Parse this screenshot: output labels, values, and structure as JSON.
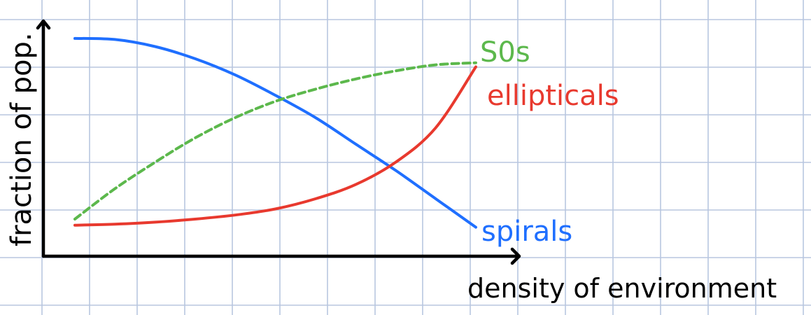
{
  "chart_data": {
    "type": "line",
    "title": "",
    "xlabel": "density of environment",
    "ylabel": "fraction of pop.",
    "xlim": [
      0,
      1
    ],
    "ylim": [
      0,
      1
    ],
    "grid": true,
    "legend": "labels at line ends (right)",
    "x": [
      0,
      0.1,
      0.2,
      0.3,
      0.4,
      0.5,
      0.6,
      0.7,
      0.8,
      0.9,
      1.0
    ],
    "series": [
      {
        "name": "spirals",
        "color": "#1f6fff",
        "style": "solid",
        "values": [
          0.99,
          0.985,
          0.95,
          0.89,
          0.81,
          0.71,
          0.6,
          0.47,
          0.34,
          0.2,
          0.06
        ]
      },
      {
        "name": "S0s",
        "color": "#5cb84c",
        "style": "dashed",
        "values": [
          0.1,
          0.25,
          0.38,
          0.5,
          0.6,
          0.68,
          0.74,
          0.79,
          0.83,
          0.86,
          0.87
        ]
      },
      {
        "name": "ellipticals",
        "color": "#e8392e",
        "style": "solid",
        "values": [
          0.07,
          0.075,
          0.085,
          0.1,
          0.12,
          0.15,
          0.2,
          0.27,
          0.38,
          0.55,
          0.85
        ]
      }
    ]
  }
}
